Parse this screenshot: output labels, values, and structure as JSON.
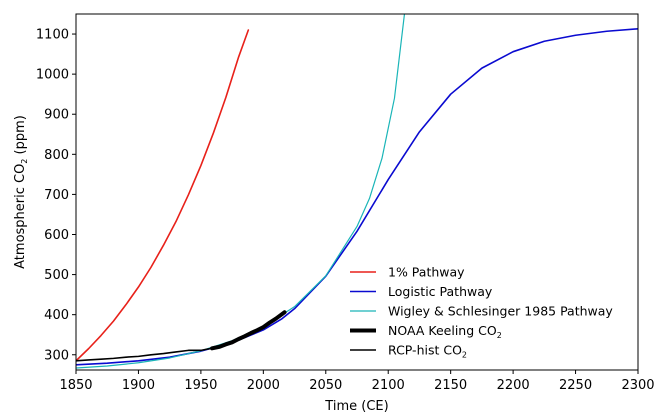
{
  "chart_data": {
    "type": "line",
    "xlabel": "Time (CE)",
    "ylabel_main": "Atmospheric CO",
    "ylabel_sub": "2",
    "ylabel_unit": " (ppm)",
    "xlim": [
      1850,
      2300
    ],
    "ylim": [
      262,
      1150
    ],
    "xticks": [
      1850,
      1900,
      1950,
      2000,
      2050,
      2100,
      2150,
      2200,
      2250,
      2300
    ],
    "yticks": [
      300,
      400,
      500,
      600,
      700,
      800,
      900,
      1000,
      1100
    ],
    "legend_position": "lower-right",
    "series": [
      {
        "name": "1% Pathway",
        "color": "#e8211a",
        "width": 1.6,
        "x": [
          1850,
          1860,
          1870,
          1880,
          1890,
          1900,
          1910,
          1920,
          1930,
          1940,
          1950,
          1960,
          1970,
          1980,
          1988
        ],
        "y": [
          285,
          315,
          348,
          384,
          425,
          469,
          518,
          573,
          632,
          699,
          772,
          853,
          942,
          1041,
          1110
        ]
      },
      {
        "name": "Logistic Pathway",
        "color": "#0a0ad0",
        "width": 1.6,
        "x": [
          1850,
          1875,
          1900,
          1925,
          1950,
          1975,
          2000,
          2015,
          2025,
          2050,
          2075,
          2100,
          2125,
          2150,
          2175,
          2200,
          2225,
          2250,
          2275,
          2300
        ],
        "y": [
          275,
          279,
          285,
          294,
          309,
          330,
          362,
          390,
          415,
          496,
          608,
          737,
          856,
          950,
          1015,
          1056,
          1082,
          1097,
          1107,
          1113
        ]
      },
      {
        "name": "Wigley & Schlesinger 1985 Pathway",
        "color": "#1ab5b8",
        "width": 1.2,
        "x": [
          1850,
          1875,
          1900,
          1925,
          1950,
          1975,
          2000,
          2025,
          2050,
          2075,
          2085,
          2095,
          2105,
          2113
        ],
        "y": [
          267,
          272,
          280,
          292,
          310,
          335,
          370,
          420,
          497,
          620,
          690,
          790,
          940,
          1150
        ]
      },
      {
        "name": "NOAA Keeling CO",
        "sub": "2",
        "color": "#000000",
        "width": 4,
        "x": [
          1959,
          1965,
          1970,
          1975,
          1980,
          1985,
          1990,
          1995,
          2000,
          2005,
          2010,
          2017
        ],
        "y": [
          316,
          320,
          326,
          331,
          339,
          346,
          354,
          361,
          369,
          380,
          390,
          406
        ]
      },
      {
        "name": "RCP-hist CO",
        "sub": "2",
        "color": "#000000",
        "width": 1.6,
        "x": [
          1850,
          1860,
          1870,
          1880,
          1890,
          1900,
          1910,
          1920,
          1930,
          1940,
          1950,
          1960,
          1970,
          1980,
          1990,
          2000,
          2005
        ],
        "y": [
          285,
          287,
          289,
          291,
          294,
          296,
          300,
          303,
          307,
          311,
          311,
          317,
          326,
          339,
          354,
          369,
          380
        ]
      }
    ]
  }
}
